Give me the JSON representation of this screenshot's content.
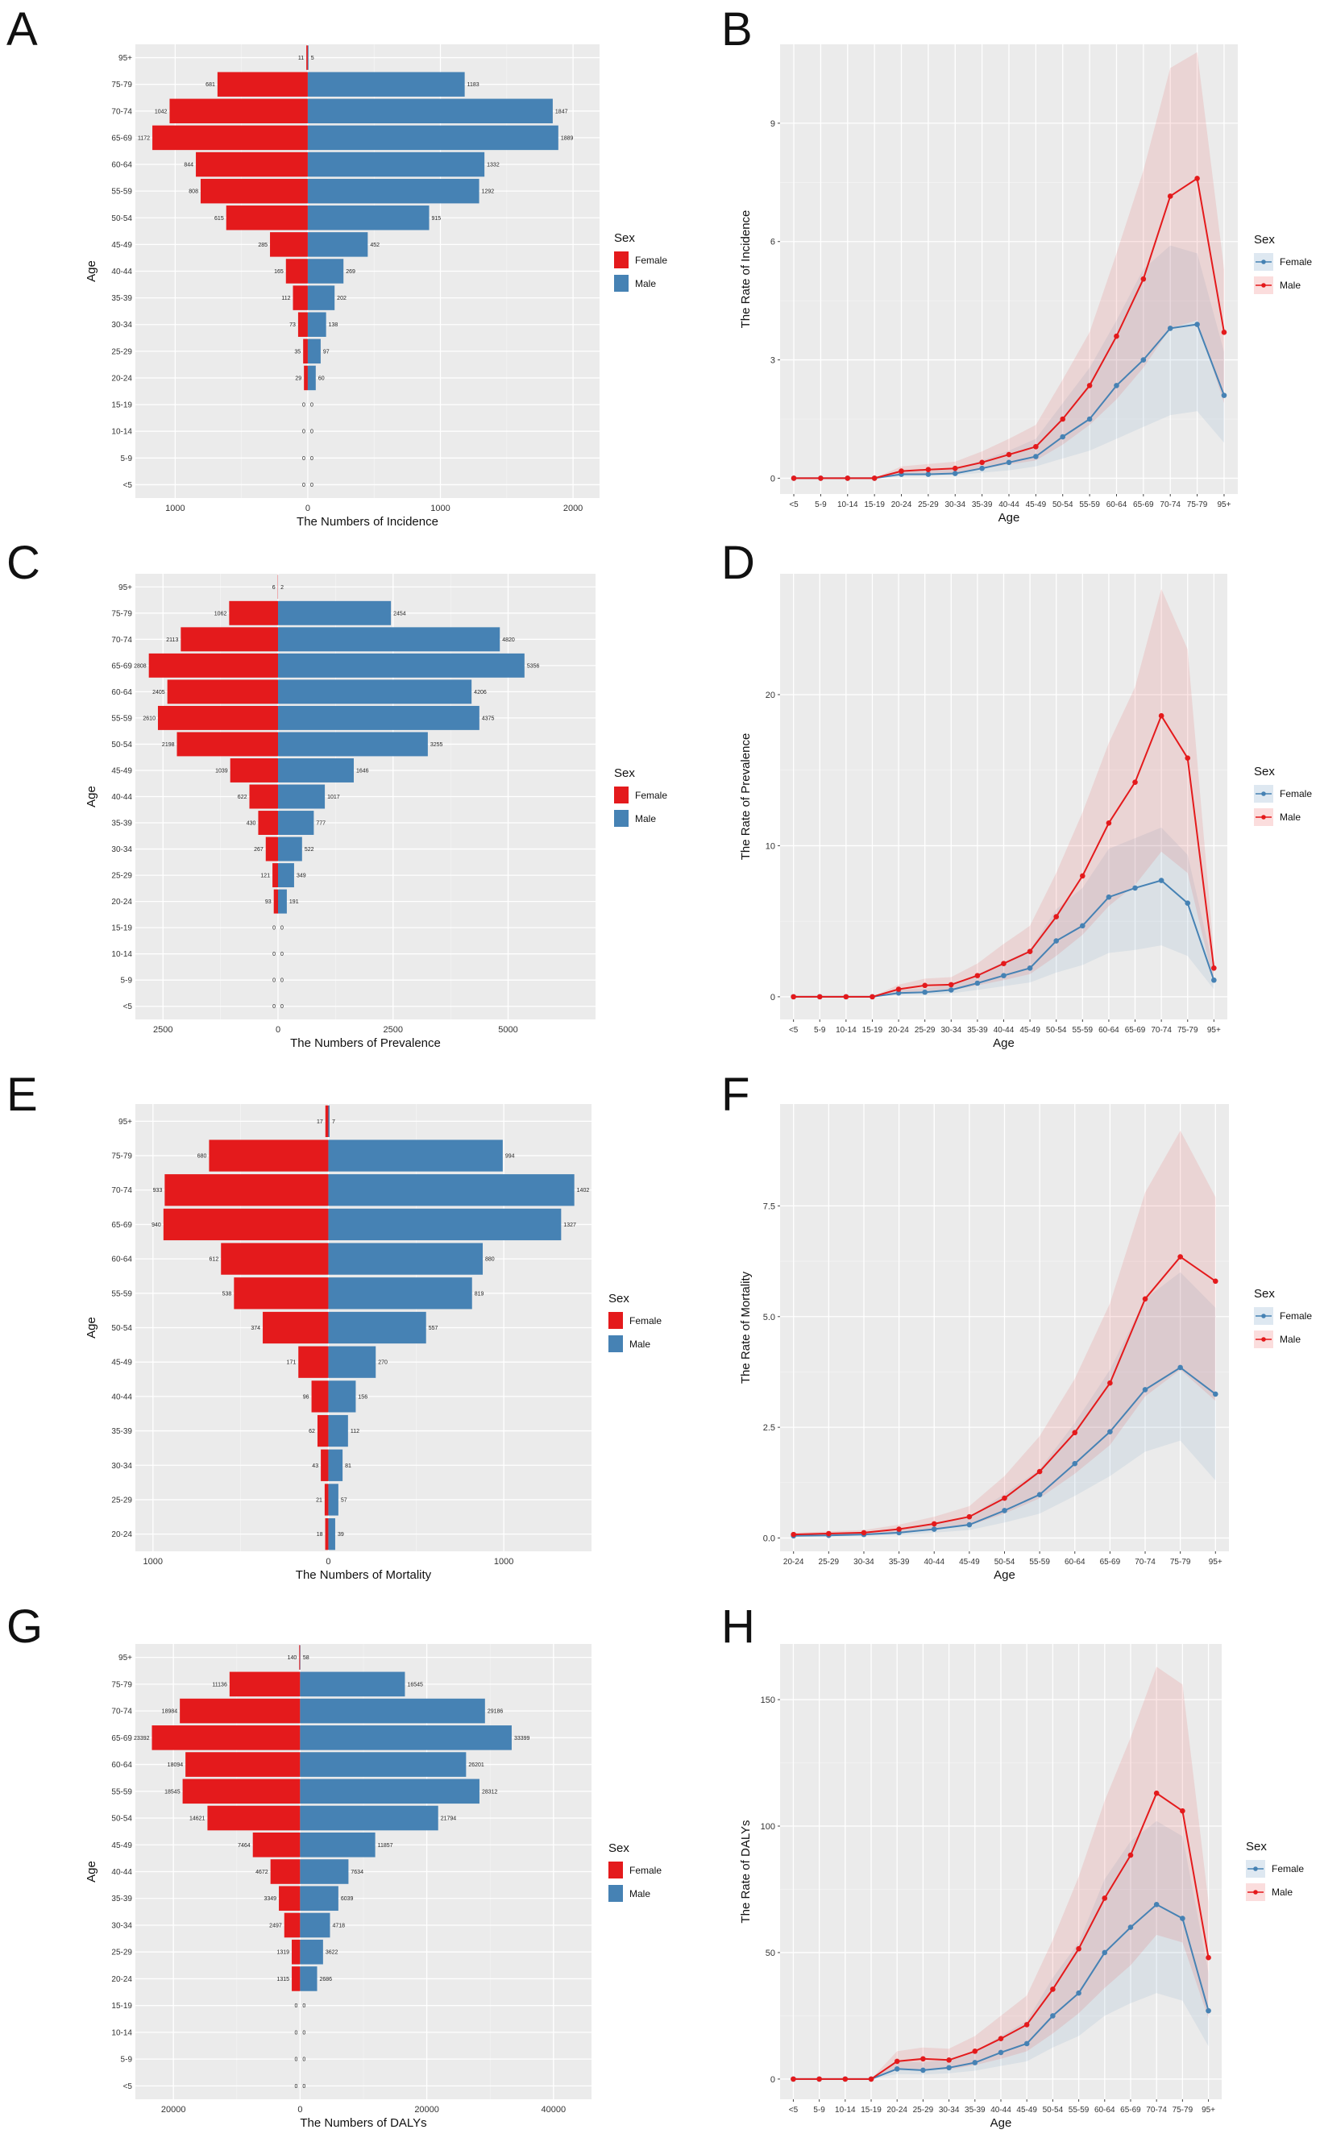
{
  "colors": {
    "female": "#e41a1c",
    "male": "#4682b4",
    "panel_bg": "#ebebeb",
    "grid": "#ffffff"
  },
  "legend": {
    "title": "Sex",
    "female": "Female",
    "male": "Male"
  },
  "chart_data": [
    {
      "panel": "A",
      "type": "bar",
      "orientation": "population-pyramid",
      "ylabel": "Age",
      "xlabel": "The Numbers of Incidence",
      "categories": [
        "95+",
        "75-79",
        "70-74",
        "65-69",
        "60-64",
        "55-59",
        "50-54",
        "45-49",
        "40-44",
        "35-39",
        "30-34",
        "25-29",
        "20-24",
        "15-19",
        "10-14",
        "5-9",
        "<5"
      ],
      "series": [
        {
          "name": "Female",
          "values": [
            11,
            681,
            1042,
            1172,
            844,
            808,
            615,
            285,
            165,
            112,
            73,
            35,
            29,
            0,
            0,
            0,
            0
          ]
        },
        {
          "name": "Male",
          "values": [
            5,
            1183,
            1847,
            1889,
            1332,
            1292,
            915,
            452,
            269,
            202,
            138,
            97,
            60,
            0,
            0,
            0,
            0
          ]
        }
      ],
      "xlim": [
        -1300,
        2200
      ],
      "xticks": [
        -1000,
        0,
        1000,
        2000
      ],
      "xtick_labels": [
        "1000",
        "0",
        "1000",
        "2000"
      ]
    },
    {
      "panel": "B",
      "type": "line",
      "xlabel": "Age",
      "ylabel": "The Rate of Incidence",
      "categories": [
        "<5",
        "5-9",
        "10-14",
        "15-19",
        "20-24",
        "25-29",
        "30-34",
        "35-39",
        "40-44",
        "45-49",
        "50-54",
        "55-59",
        "60-64",
        "65-69",
        "70-74",
        "75-79",
        "95+"
      ],
      "series": [
        {
          "name": "Female",
          "values": [
            0,
            0,
            0,
            0,
            0.1,
            0.1,
            0.12,
            0.25,
            0.4,
            0.55,
            1.05,
            1.5,
            2.35,
            3.0,
            3.8,
            3.9,
            2.1
          ],
          "lower": [
            0,
            0,
            0,
            0,
            0.05,
            0.06,
            0.08,
            0.14,
            0.2,
            0.3,
            0.5,
            0.7,
            1.0,
            1.3,
            1.6,
            1.7,
            0.9
          ],
          "upper": [
            0,
            0,
            0,
            0,
            0.18,
            0.2,
            0.25,
            0.45,
            0.7,
            1.0,
            1.9,
            2.8,
            4.0,
            5.3,
            5.9,
            5.7,
            3.2
          ]
        },
        {
          "name": "Male",
          "values": [
            0,
            0,
            0,
            0,
            0.18,
            0.22,
            0.25,
            0.4,
            0.6,
            0.8,
            1.5,
            2.35,
            3.6,
            5.05,
            7.15,
            7.6,
            3.7
          ],
          "lower": [
            0,
            0,
            0,
            0,
            0.1,
            0.12,
            0.14,
            0.24,
            0.35,
            0.45,
            0.85,
            1.35,
            2.0,
            2.8,
            3.8,
            4.0,
            1.9
          ],
          "upper": [
            0,
            0,
            0,
            0,
            0.3,
            0.36,
            0.42,
            0.68,
            1.0,
            1.35,
            2.5,
            3.7,
            5.7,
            7.8,
            10.4,
            10.8,
            5.3
          ]
        }
      ],
      "ylim": [
        -0.4,
        11
      ],
      "yticks": [
        0,
        3,
        6,
        9
      ]
    },
    {
      "panel": "C",
      "type": "bar",
      "orientation": "population-pyramid",
      "ylabel": "Age",
      "xlabel": "The Numbers of Prevalence",
      "categories": [
        "95+",
        "75-79",
        "70-74",
        "65-69",
        "60-64",
        "55-59",
        "50-54",
        "45-49",
        "40-44",
        "35-39",
        "30-34",
        "25-29",
        "20-24",
        "15-19",
        "10-14",
        "5-9",
        "<5"
      ],
      "series": [
        {
          "name": "Female",
          "values": [
            6,
            1062,
            2113,
            2808,
            2405,
            2610,
            2198,
            1039,
            622,
            430,
            267,
            121,
            93,
            0,
            0,
            0,
            0
          ]
        },
        {
          "name": "Male",
          "values": [
            2,
            2454,
            4820,
            5356,
            4206,
            4375,
            3255,
            1646,
            1017,
            777,
            522,
            349,
            191,
            0,
            0,
            0,
            0
          ]
        }
      ],
      "xlim": [
        -3100,
        6900
      ],
      "xticks": [
        -2500,
        0,
        2500,
        5000
      ],
      "xtick_labels": [
        "2500",
        "0",
        "2500",
        "5000"
      ]
    },
    {
      "panel": "D",
      "type": "line",
      "xlabel": "Age",
      "ylabel": "The Rate of Prevalence",
      "categories": [
        "<5",
        "5-9",
        "10-14",
        "15-19",
        "20-24",
        "25-29",
        "30-34",
        "35-39",
        "40-44",
        "45-49",
        "50-54",
        "55-59",
        "60-64",
        "65-69",
        "70-74",
        "75-79",
        "95+"
      ],
      "series": [
        {
          "name": "Female",
          "values": [
            0,
            0,
            0,
            0,
            0.25,
            0.3,
            0.45,
            0.9,
            1.4,
            1.9,
            3.7,
            4.7,
            6.6,
            7.2,
            7.7,
            6.2,
            1.1
          ],
          "lower": [
            0,
            0,
            0,
            0,
            0.12,
            0.15,
            0.22,
            0.45,
            0.7,
            0.95,
            1.6,
            2.1,
            2.9,
            3.1,
            3.4,
            2.7,
            0.5
          ],
          "upper": [
            0,
            0,
            0,
            0,
            0.45,
            0.55,
            0.8,
            1.5,
            2.3,
            3.1,
            5.8,
            7.2,
            9.8,
            10.5,
            11.2,
            9.4,
            1.8
          ]
        },
        {
          "name": "Male",
          "values": [
            0,
            0,
            0,
            0,
            0.5,
            0.75,
            0.8,
            1.4,
            2.2,
            3.0,
            5.3,
            8.0,
            11.5,
            14.2,
            18.6,
            15.8,
            1.9
          ],
          "lower": [
            0,
            0,
            0,
            0,
            0.25,
            0.4,
            0.42,
            0.75,
            1.1,
            1.5,
            2.7,
            4.1,
            6.0,
            7.4,
            9.6,
            8.2,
            0.9
          ],
          "upper": [
            0,
            0,
            0,
            0,
            0.8,
            1.2,
            1.3,
            2.2,
            3.5,
            4.7,
            8.2,
            12.2,
            16.8,
            20.5,
            27.0,
            23.0,
            2.9
          ]
        }
      ],
      "ylim": [
        -1.5,
        28
      ],
      "yticks": [
        0,
        10,
        20
      ]
    },
    {
      "panel": "E",
      "type": "bar",
      "orientation": "population-pyramid",
      "ylabel": "Age",
      "xlabel": "The Numbers of Mortality",
      "categories": [
        "95+",
        "75-79",
        "70-74",
        "65-69",
        "60-64",
        "55-59",
        "50-54",
        "45-49",
        "40-44",
        "35-39",
        "30-34",
        "25-29",
        "20-24"
      ],
      "series": [
        {
          "name": "Female",
          "values": [
            17,
            680,
            933,
            940,
            612,
            538,
            374,
            171,
            96,
            62,
            43,
            21,
            18
          ]
        },
        {
          "name": "Male",
          "values": [
            7,
            994,
            1402,
            1327,
            880,
            819,
            557,
            270,
            156,
            112,
            81,
            57,
            39
          ]
        }
      ],
      "xlim": [
        -1100,
        1500
      ],
      "xticks": [
        -1000,
        0,
        1000
      ],
      "xtick_labels": [
        "1000",
        "0",
        "1000"
      ]
    },
    {
      "panel": "F",
      "type": "line",
      "xlabel": "Age",
      "ylabel": "The Rate of Mortality",
      "categories": [
        "20-24",
        "25-29",
        "30-34",
        "35-39",
        "40-44",
        "45-49",
        "50-54",
        "55-59",
        "60-64",
        "65-69",
        "70-74",
        "75-79",
        "95+"
      ],
      "series": [
        {
          "name": "Female",
          "values": [
            0.05,
            0.06,
            0.08,
            0.12,
            0.2,
            0.3,
            0.62,
            0.98,
            1.68,
            2.4,
            3.35,
            3.85,
            3.25
          ],
          "lower": [
            0.03,
            0.04,
            0.05,
            0.07,
            0.12,
            0.18,
            0.35,
            0.55,
            0.95,
            1.4,
            1.95,
            2.2,
            1.3
          ],
          "upper": [
            0.08,
            0.1,
            0.13,
            0.2,
            0.32,
            0.48,
            1.0,
            1.55,
            2.6,
            3.8,
            5.4,
            6.0,
            5.2
          ]
        },
        {
          "name": "Male",
          "values": [
            0.08,
            0.1,
            0.12,
            0.2,
            0.32,
            0.48,
            0.9,
            1.5,
            2.38,
            3.5,
            5.4,
            6.35,
            5.8
          ],
          "lower": [
            0.05,
            0.06,
            0.07,
            0.12,
            0.19,
            0.28,
            0.55,
            0.9,
            1.45,
            2.1,
            3.2,
            3.8,
            3.1
          ],
          "upper": [
            0.12,
            0.15,
            0.18,
            0.3,
            0.48,
            0.72,
            1.4,
            2.3,
            3.6,
            5.3,
            7.8,
            9.2,
            7.7
          ]
        }
      ],
      "ylim": [
        -0.3,
        9.8
      ],
      "yticks": [
        0,
        2.5,
        5,
        7.5
      ],
      "ytick_labels": [
        "0.0",
        "2.5",
        "5.0",
        "7.5"
      ]
    },
    {
      "panel": "G",
      "type": "bar",
      "orientation": "population-pyramid",
      "ylabel": "Age",
      "xlabel": "The Numbers of DALYs",
      "categories": [
        "95+",
        "75-79",
        "70-74",
        "65-69",
        "60-64",
        "55-59",
        "50-54",
        "45-49",
        "40-44",
        "35-39",
        "30-34",
        "25-29",
        "20-24",
        "15-19",
        "10-14",
        "5-9",
        "<5"
      ],
      "series": [
        {
          "name": "Female",
          "values": [
            140,
            11136,
            18984,
            23392,
            18094,
            18545,
            14621,
            7464,
            4672,
            3349,
            2497,
            1319,
            1315,
            0,
            0,
            0,
            0
          ]
        },
        {
          "name": "Male",
          "values": [
            58,
            16545,
            29186,
            33399,
            26201,
            28312,
            21794,
            11857,
            7634,
            6039,
            4718,
            3622,
            2686,
            0,
            0,
            0,
            0
          ]
        }
      ],
      "xlim": [
        -26000,
        46000
      ],
      "xticks": [
        -20000,
        0,
        20000,
        40000
      ],
      "xtick_labels": [
        "20000",
        "0",
        "20000",
        "40000"
      ]
    },
    {
      "panel": "H",
      "type": "line",
      "xlabel": "Age",
      "ylabel": "The Rate of DALYs",
      "categories": [
        "<5",
        "5-9",
        "10-14",
        "15-19",
        "20-24",
        "25-29",
        "30-34",
        "35-39",
        "40-44",
        "45-49",
        "50-54",
        "55-59",
        "60-64",
        "65-69",
        "70-74",
        "75-79",
        "95+"
      ],
      "series": [
        {
          "name": "Female",
          "values": [
            0,
            0,
            0,
            0,
            4,
            3.5,
            4.5,
            6.5,
            10.5,
            14,
            25,
            34,
            50,
            60,
            69,
            63.5,
            27
          ],
          "lower": [
            0,
            0,
            0,
            0,
            2,
            1.8,
            2.3,
            3.3,
            5.2,
            7,
            12.5,
            17,
            25,
            30,
            34,
            31,
            13
          ],
          "upper": [
            0,
            0,
            0,
            0,
            7,
            6.5,
            8,
            11,
            17,
            23,
            40,
            54,
            79,
            94,
            102,
            96,
            42
          ]
        },
        {
          "name": "Male",
          "values": [
            0,
            0,
            0,
            0,
            7,
            8,
            7.5,
            11,
            16,
            21.5,
            35.5,
            51.5,
            71.5,
            88.5,
            113,
            106,
            48
          ],
          "lower": [
            0,
            0,
            0,
            0,
            3.5,
            4,
            3.8,
            5.5,
            8,
            11,
            18,
            26,
            36,
            45,
            57,
            54,
            24
          ],
          "upper": [
            0,
            0,
            0,
            0,
            11,
            12.5,
            12,
            17,
            25,
            33,
            55,
            80,
            110,
            135,
            163,
            156,
            70
          ]
        }
      ],
      "ylim": [
        -8,
        172
      ],
      "yticks": [
        0,
        50,
        100,
        150
      ]
    }
  ]
}
